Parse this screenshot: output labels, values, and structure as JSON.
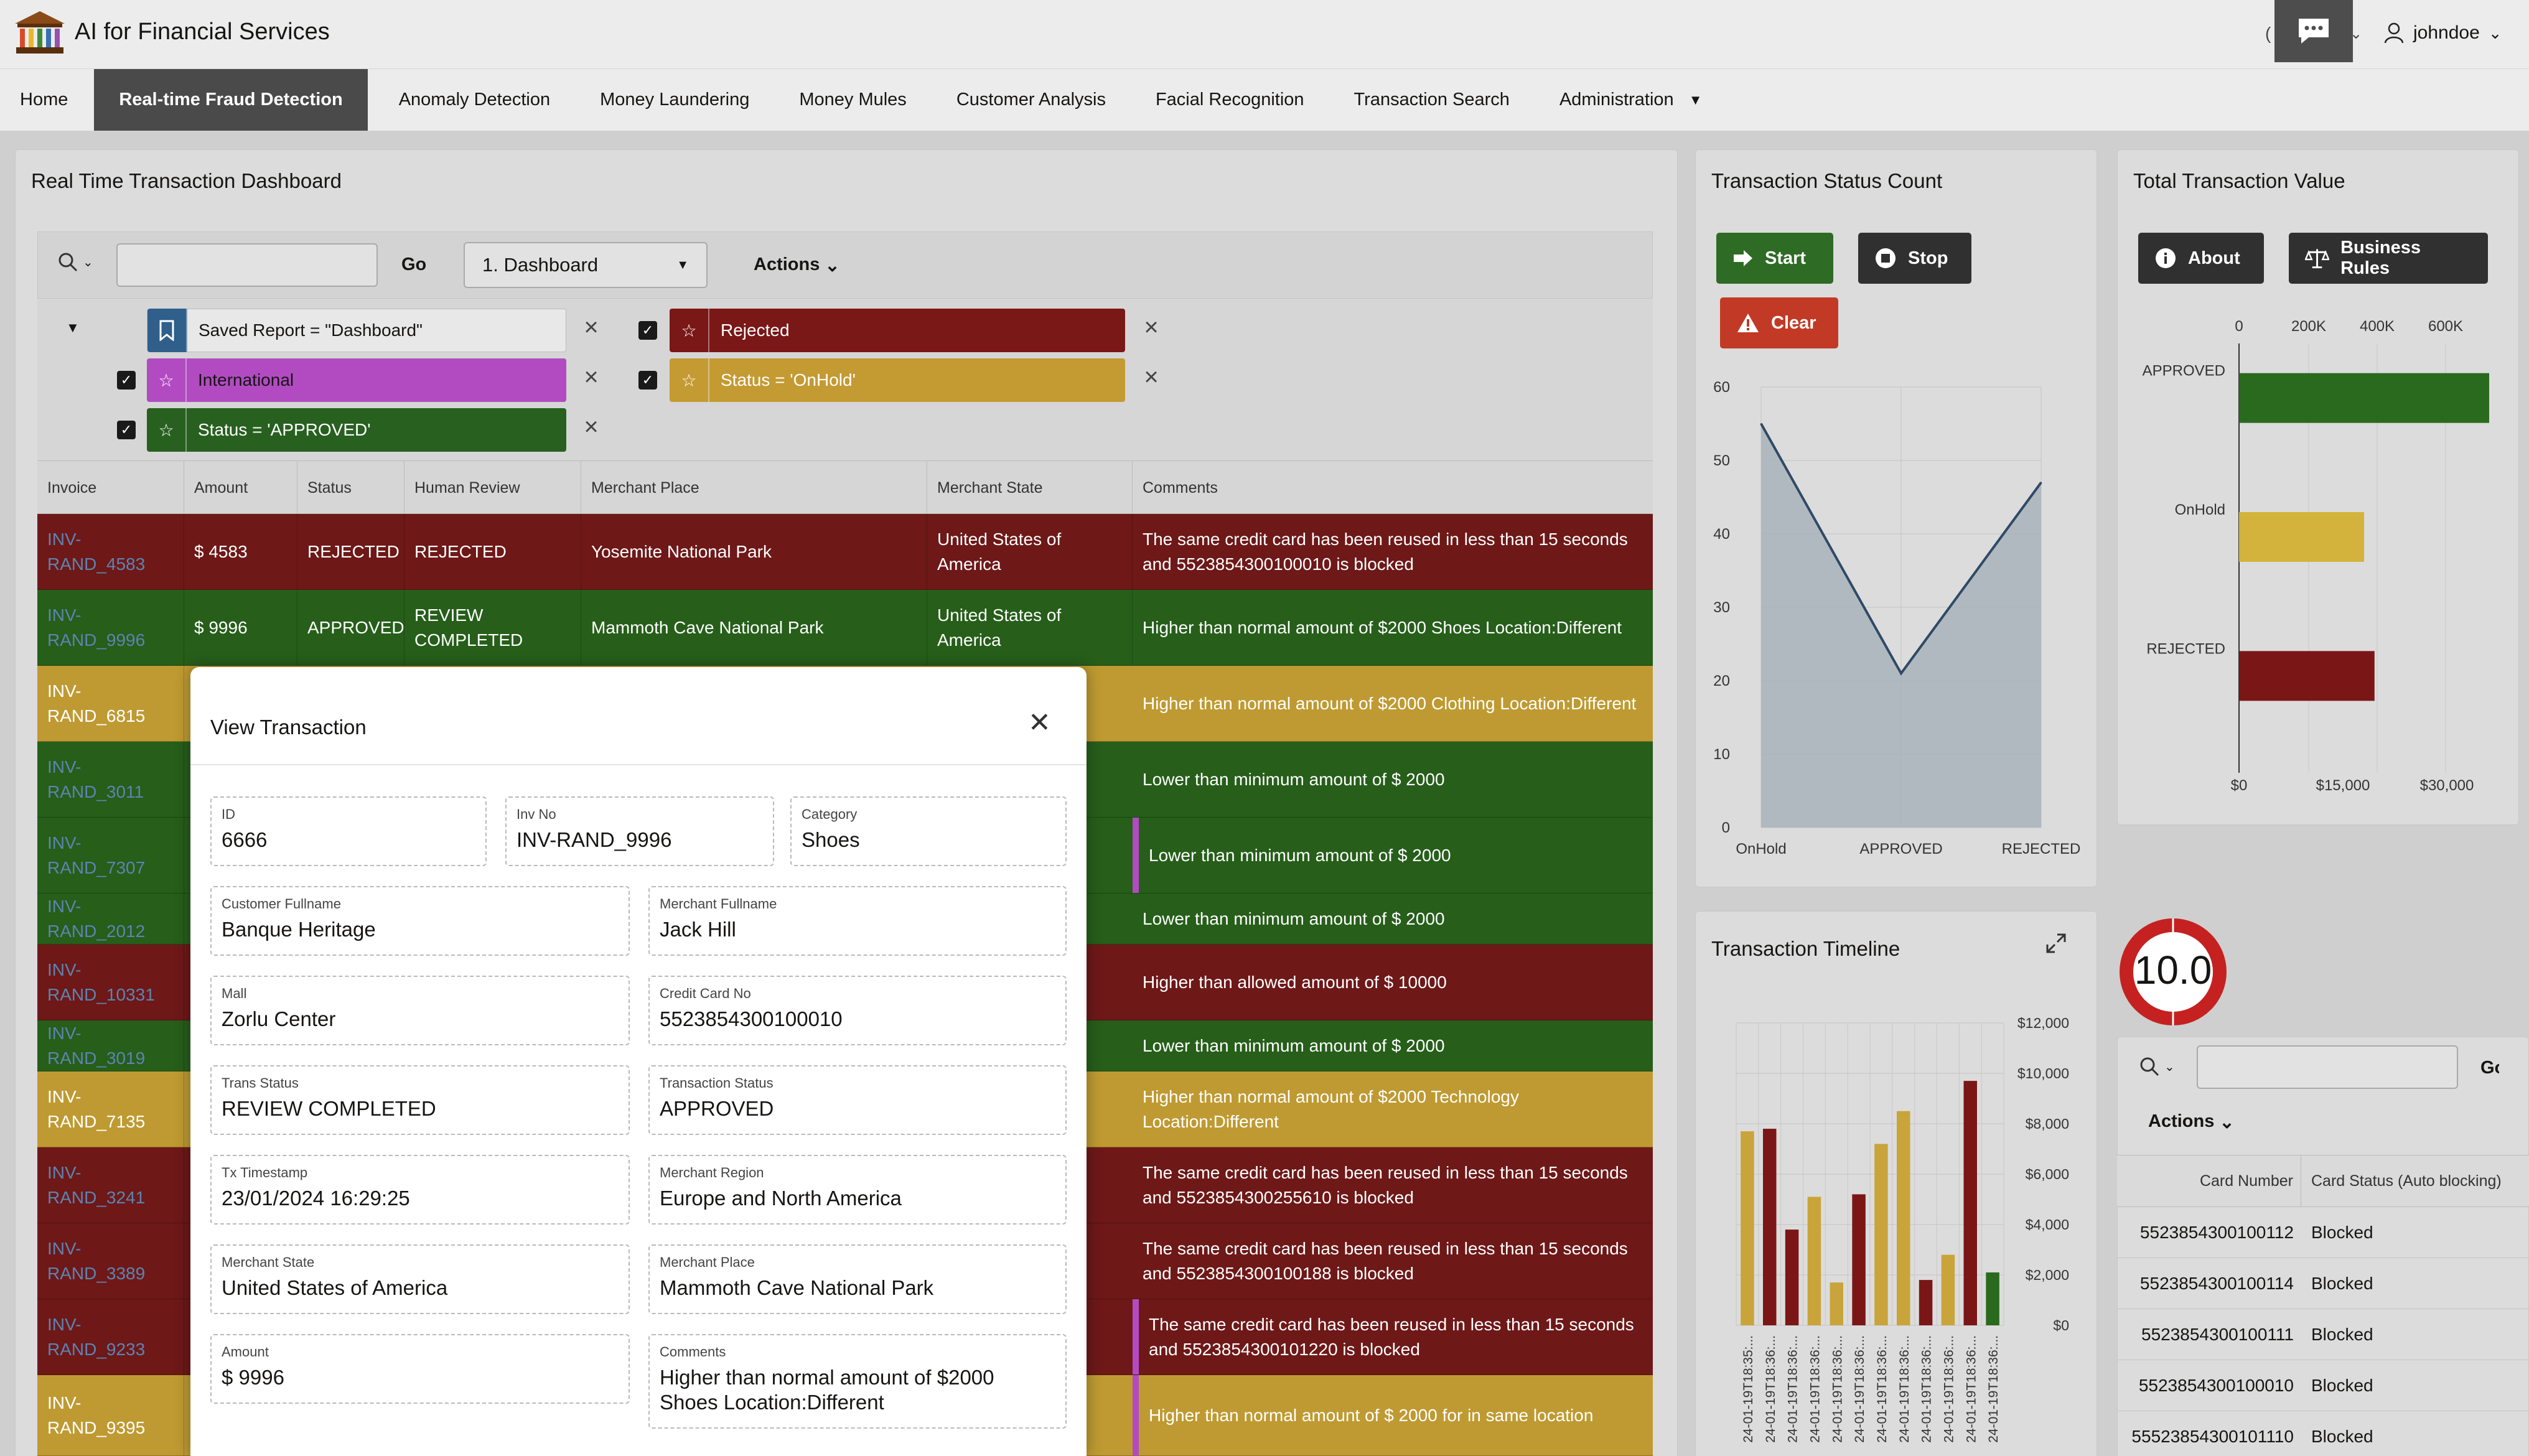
{
  "header": {
    "app_title": "AI for Financial Services",
    "username": "johndoe"
  },
  "nav": {
    "items": [
      "Home",
      "Real-time Fraud Detection",
      "Anomaly Detection",
      "Money Laundering",
      "Money Mules",
      "Customer Analysis",
      "Facial Recognition",
      "Transaction Search",
      "Administration"
    ],
    "active": "Real-time Fraud Detection"
  },
  "dashboard": {
    "title": "Real Time Transaction Dashboard",
    "search_value": "",
    "go_label": "Go",
    "report_select": "1. Dashboard",
    "actions_label": "Actions",
    "filters": [
      {
        "label": "Saved Report = \"Dashboard\"",
        "icon": "bookmark-icon"
      },
      {
        "label": "Rejected",
        "icon": "star-icon",
        "color": "#7a1717"
      },
      {
        "label": "International",
        "icon": "star-icon",
        "color": "#b24bc2"
      },
      {
        "label": "Status = 'OnHold'",
        "icon": "star-icon",
        "color": "#c49a32"
      },
      {
        "label": "Status = 'APPROVED'",
        "icon": "star-icon",
        "color": "#286020"
      }
    ],
    "columns": [
      "Invoice",
      "Amount",
      "Status",
      "Human Review",
      "Merchant Place",
      "Merchant State",
      "Comments"
    ],
    "rows": [
      {
        "invoice": "INV-RAND_4583",
        "amount": "$ 4583",
        "status": "REJECTED",
        "review": "REJECTED",
        "place": "Yosemite National Park",
        "state": "United States of America",
        "comment": "The same credit card has been reused in less than 15 seconds and 5523854300100010 is blocked"
      },
      {
        "invoice": "INV-RAND_9996",
        "amount": "$ 9996",
        "status": "APPROVED",
        "review": "REVIEW COMPLETED",
        "place": "Mammoth Cave National Park",
        "state": "United States of America",
        "comment": "Higher than normal amount of $2000 Shoes Location:Different"
      },
      {
        "invoice": "INV-RAND_6815",
        "comment": "Higher than normal amount of $2000 Clothing Location:Different"
      },
      {
        "invoice": "INV-RAND_3011",
        "comment": "Lower than minimum amount of $ 2000"
      },
      {
        "invoice": "INV-RAND_7307",
        "comment": "Lower than minimum amount of $ 2000"
      },
      {
        "invoice": "INV-RAND_2012",
        "comment": "Lower than minimum amount of $ 2000"
      },
      {
        "invoice": "INV-RAND_10331",
        "comment": "Higher than allowed amount of $ 10000"
      },
      {
        "invoice": "INV-RAND_3019",
        "comment": "Lower than minimum amount of $ 2000"
      },
      {
        "invoice": "INV-RAND_7135",
        "comment": "Higher than normal amount of $2000 Technology Location:Different"
      },
      {
        "invoice": "INV-RAND_3241",
        "comment": "The same credit card has been reused in less than 15 seconds and 5523854300255610 is blocked"
      },
      {
        "invoice": "INV-RAND_3389",
        "comment": "The same credit card has been reused in less than 15 seconds and 5523854300100188 is blocked"
      },
      {
        "invoice": "INV-RAND_9233",
        "comment": "The same credit card has been reused in less than 15 seconds and 5523854300101220 is blocked"
      },
      {
        "invoice": "INV-RAND_9395",
        "comment": "Higher than normal amount of $ 2000 for in same location"
      }
    ]
  },
  "modal": {
    "title": "View Transaction",
    "fields": [
      {
        "label": "ID",
        "value": "6666"
      },
      {
        "label": "Inv No",
        "value": "INV-RAND_9996"
      },
      {
        "label": "Category",
        "value": "Shoes"
      },
      {
        "label": "Customer Fullname",
        "value": "Banque Heritage"
      },
      {
        "label": "Merchant Fullname",
        "value": "Jack Hill"
      },
      {
        "label": "Mall",
        "value": "Zorlu Center"
      },
      {
        "label": "Credit Card No",
        "value": "5523854300100010"
      },
      {
        "label": "Trans Status",
        "value": "REVIEW COMPLETED"
      },
      {
        "label": "Transaction Status",
        "value": "APPROVED"
      },
      {
        "label": "Tx Timestamp",
        "value": "23/01/2024 16:29:25"
      },
      {
        "label": "Merchant Region",
        "value": "Europe and North America"
      },
      {
        "label": "Merchant State",
        "value": "United States of America"
      },
      {
        "label": "Merchant Place",
        "value": "Mammoth Cave National Park"
      },
      {
        "label": "Amount",
        "value": "$ 9996"
      },
      {
        "label": "Comments",
        "value": "Higher than normal amount of $2000 Shoes Location:Different"
      }
    ]
  },
  "status_count": {
    "title": "Transaction Status Count",
    "start_label": "Start",
    "stop_label": "Stop",
    "clear_label": "Clear",
    "chart_data": {
      "type": "area",
      "categories": [
        "OnHold",
        "APPROVED",
        "REJECTED"
      ],
      "values": [
        55,
        21,
        47
      ],
      "ylim": [
        0,
        60
      ],
      "yticks": [
        0,
        10,
        20,
        30,
        40,
        50,
        60
      ],
      "color": "#a9b3bb"
    }
  },
  "total_value": {
    "title": "Total Transaction Value",
    "about_label": "About",
    "rules_label": "Business Rules",
    "chart_data": {
      "type": "bar",
      "orientation": "horizontal",
      "categories": [
        "APPROVED",
        "OnHold",
        "REJECTED"
      ],
      "values": [
        36000,
        18000,
        19500
      ],
      "colors": [
        "#2a6a1e",
        "#d4b33c",
        "#7b1616"
      ],
      "xticks_top": [
        "0",
        "200K",
        "400K",
        "600K"
      ],
      "xticks_bottom": [
        "$0",
        "$15,000",
        "$30,000"
      ],
      "xlim": [
        0,
        36000
      ]
    }
  },
  "timeline": {
    "title": "Transaction Timeline",
    "chart_data": {
      "type": "bar",
      "values": [
        7700,
        7800,
        3800,
        5100,
        1700,
        5200,
        7200,
        8500,
        1800,
        2800,
        9700,
        2100
      ],
      "colors": [
        "#c9a43a",
        "#7b1616",
        "#7b1616",
        "#c9a43a",
        "#c9a43a",
        "#7b1616",
        "#c9a43a",
        "#c9a43a",
        "#7b1616",
        "#c9a43a",
        "#7b1616",
        "#2a6a1e"
      ],
      "ylim": [
        0,
        12000
      ],
      "yticks": [
        "$0",
        "$2,000",
        "$4,000",
        "$6,000",
        "$8,000",
        "$10,000",
        "$12,000"
      ],
      "xlabels": [
        "24-01-19T18:35:...",
        "24-01-19T18:36:...",
        "24-01-19T18:36:...",
        "24-01-19T18:36:...",
        "24-01-19T18:36:...",
        "24-01-19T18:36:...",
        "24-01-19T18:36:...",
        "24-01-19T18:36:...",
        "24-01-19T18:36:...",
        "24-01-19T18:36:...",
        "24-01-19T18:36:...",
        "24-01-19T18:36:..."
      ]
    }
  },
  "speed": {
    "value": "10.0"
  },
  "cards": {
    "go_label": "Go",
    "actions_label": "Actions",
    "columns": [
      "Card Number",
      "Card Status (Auto blocking)"
    ],
    "rows": [
      {
        "card": "5523854300100112",
        "status": "Blocked"
      },
      {
        "card": "5523854300100114",
        "status": "Blocked"
      },
      {
        "card": "5523854300100111",
        "status": "Blocked"
      },
      {
        "card": "5523854300100010",
        "status": "Blocked"
      },
      {
        "card": "55523854300101110",
        "status": "Blocked"
      }
    ]
  }
}
